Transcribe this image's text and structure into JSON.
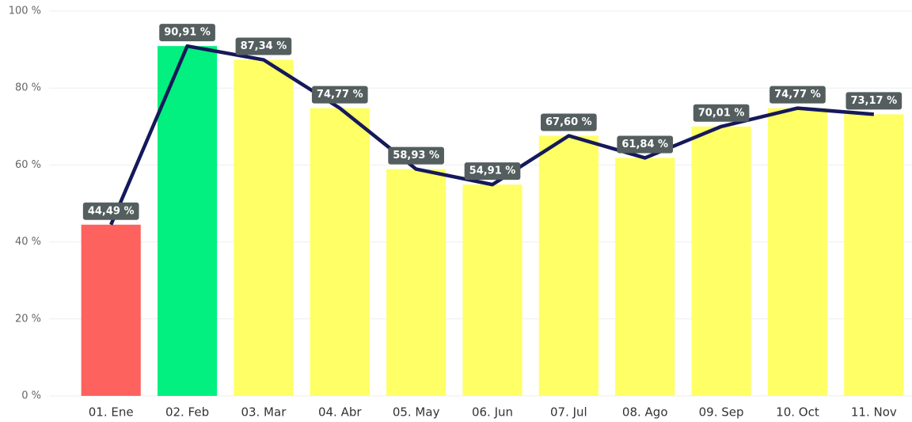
{
  "chart_data": {
    "type": "bar",
    "categories": [
      "01. Ene",
      "02. Feb",
      "03. Mar",
      "04. Abr",
      "05. May",
      "06. Jun",
      "07. Jul",
      "08. Ago",
      "09. Sep",
      "10. Oct",
      "11. Nov"
    ],
    "values": [
      44.49,
      90.91,
      87.34,
      74.77,
      58.93,
      54.91,
      67.6,
      61.84,
      70.01,
      74.77,
      73.17
    ],
    "value_labels": [
      "44,49 %",
      "90,91 %",
      "87,34 %",
      "74,77 %",
      "58,93 %",
      "54,91 %",
      "67,60 %",
      "61,84 %",
      "70,01 %",
      "74,77 %",
      "73,17 %"
    ],
    "colors": [
      "#fd625e",
      "#01f07f",
      "#ffff66",
      "#ffff66",
      "#ffff66",
      "#ffff66",
      "#ffff66",
      "#ffff66",
      "#ffff66",
      "#ffff66",
      "#ffff66"
    ],
    "line_color": "#15195a",
    "ylim": [
      0,
      100
    ],
    "yticks": [
      {
        "value": 0,
        "label": "0 %"
      },
      {
        "value": 20,
        "label": "20 %"
      },
      {
        "value": 40,
        "label": "40 %"
      },
      {
        "value": 60,
        "label": "60 %"
      },
      {
        "value": 80,
        "label": "80 %"
      },
      {
        "value": 100,
        "label": "100 %"
      }
    ],
    "grid": true
  }
}
